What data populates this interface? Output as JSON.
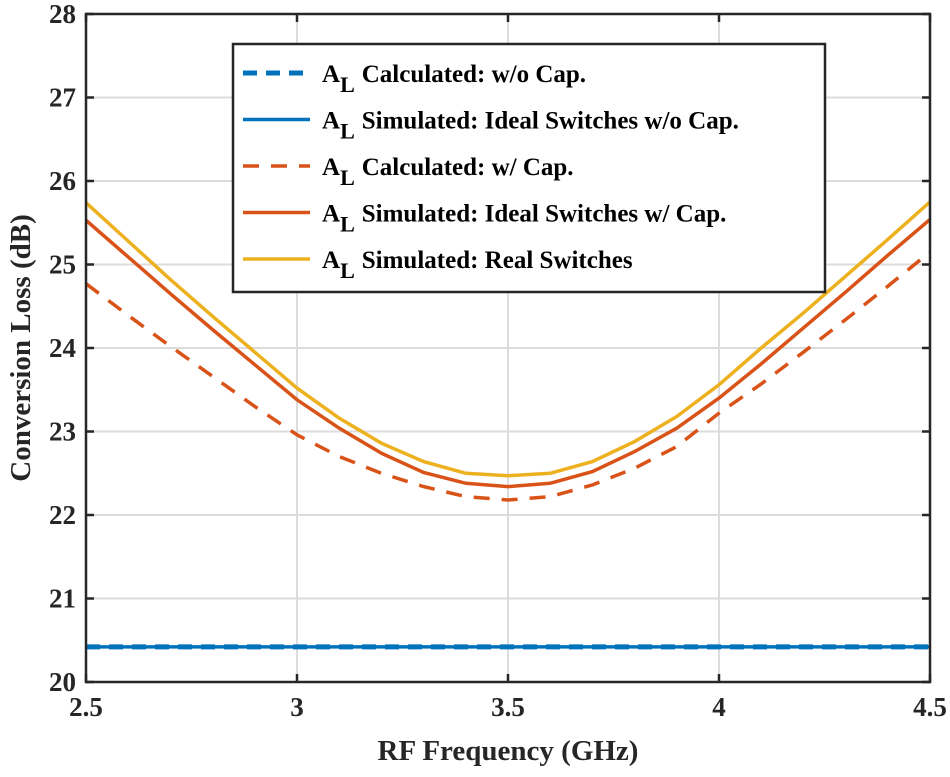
{
  "chart_data": {
    "type": "line",
    "title": "",
    "xlabel": "RF Frequency (GHz)",
    "ylabel": "Conversion Loss (dB)",
    "xlim": [
      2.5,
      4.5
    ],
    "ylim": [
      20,
      28
    ],
    "xticks": [
      "2.5",
      "3",
      "3.5",
      "4",
      "4.5"
    ],
    "yticks": [
      "20",
      "21",
      "22",
      "23",
      "24",
      "25",
      "26",
      "27",
      "28"
    ],
    "grid": true,
    "legend_position": "top-center",
    "x": [
      2.5,
      2.6,
      2.7,
      2.8,
      2.9,
      3.0,
      3.1,
      3.2,
      3.3,
      3.4,
      3.5,
      3.6,
      3.7,
      3.8,
      3.9,
      4.0,
      4.1,
      4.2,
      4.3,
      4.4,
      4.5
    ],
    "series": [
      {
        "name_main": "A",
        "name_sub": "L",
        "name_rest": "Calculated: w/o Cap.",
        "color": "#0072BD",
        "style": "dashed",
        "values": [
          20.42,
          20.42,
          20.42,
          20.42,
          20.42,
          20.42,
          20.42,
          20.42,
          20.42,
          20.42,
          20.42,
          20.42,
          20.42,
          20.42,
          20.42,
          20.42,
          20.42,
          20.42,
          20.42,
          20.42,
          20.42
        ]
      },
      {
        "name_main": "A",
        "name_sub": "L",
        "name_rest": "Simulated: Ideal Switches w/o Cap.",
        "color": "#0072BD",
        "style": "solid",
        "values": [
          20.42,
          20.42,
          20.42,
          20.42,
          20.42,
          20.42,
          20.42,
          20.42,
          20.42,
          20.42,
          20.42,
          20.42,
          20.42,
          20.42,
          20.42,
          20.42,
          20.42,
          20.42,
          20.42,
          20.42,
          20.42
        ]
      },
      {
        "name_main": "A",
        "name_sub": "L",
        "name_rest": "Calculated: w/ Cap.",
        "color": "#D95319",
        "style": "dashed",
        "values": [
          24.77,
          24.39,
          24.02,
          23.66,
          23.3,
          22.96,
          22.7,
          22.5,
          22.34,
          22.22,
          22.18,
          22.22,
          22.36,
          22.56,
          22.82,
          23.22,
          23.57,
          23.95,
          24.34,
          24.74,
          25.15
        ]
      },
      {
        "name_main": "A",
        "name_sub": "L",
        "name_rest": "Simulated: Ideal Switches w/ Cap.",
        "color": "#D95319",
        "style": "solid",
        "values": [
          25.53,
          25.09,
          24.65,
          24.22,
          23.8,
          23.38,
          23.04,
          22.74,
          22.51,
          22.38,
          22.34,
          22.38,
          22.52,
          22.76,
          23.04,
          23.4,
          23.81,
          24.24,
          24.67,
          25.11,
          25.54
        ]
      },
      {
        "name_main": "A",
        "name_sub": "L",
        "name_rest": "Simulated: Real Switches",
        "color": "#EDB120",
        "style": "solid",
        "values": [
          25.74,
          25.28,
          24.82,
          24.38,
          23.95,
          23.52,
          23.16,
          22.86,
          22.64,
          22.5,
          22.47,
          22.5,
          22.64,
          22.88,
          23.18,
          23.56,
          24.0,
          24.42,
          24.86,
          25.3,
          25.75
        ]
      }
    ]
  }
}
